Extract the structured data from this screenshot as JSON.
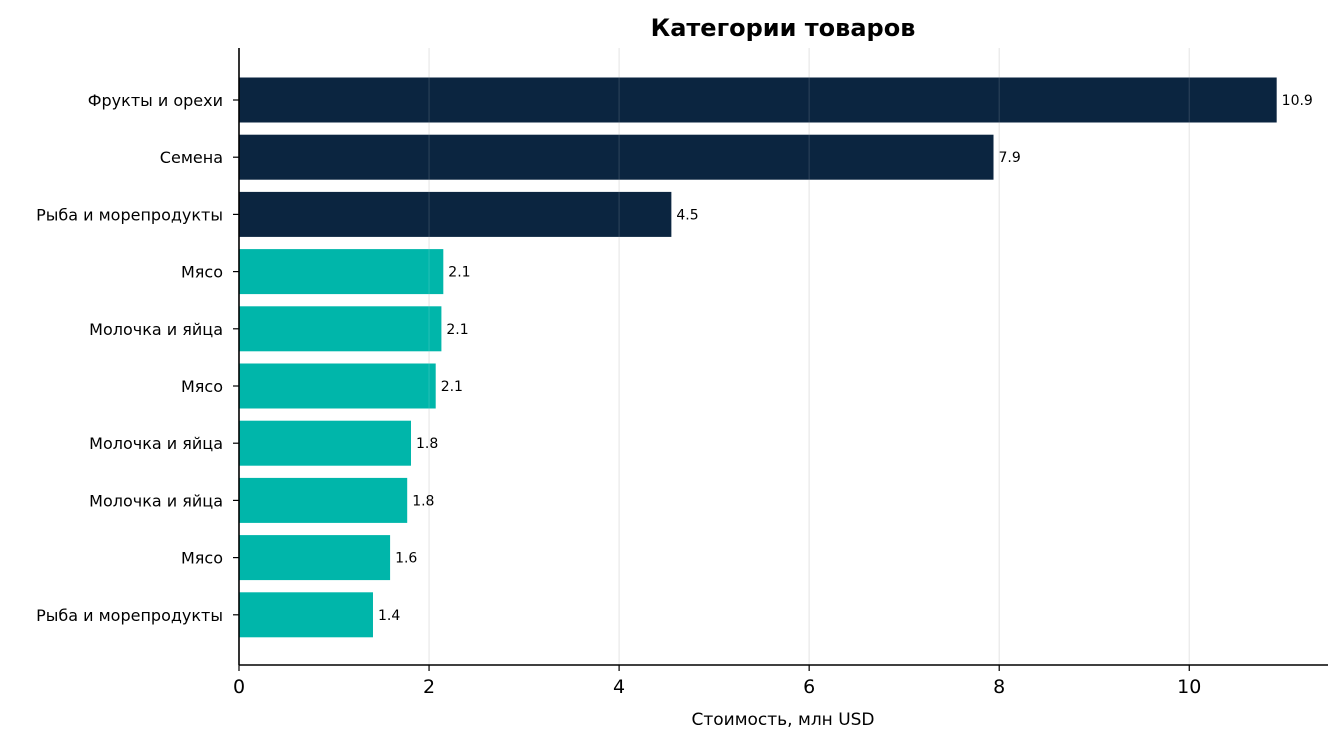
{
  "chart_data": {
    "type": "bar",
    "orientation": "horizontal",
    "title": "Категории товаров",
    "xlabel": "Стоимость, млн USD",
    "ylabel": "",
    "xlim": [
      0,
      11.46
    ],
    "xticks": [
      0,
      2,
      4,
      6,
      8,
      10
    ],
    "grid": "vertical",
    "legend": "none",
    "colors": {
      "top3": "#0b2540",
      "rest": "#00b6aa",
      "grid": "#e6e6e6",
      "axis": "#000000"
    },
    "categories": [
      "Фрукты и орехи",
      "Семена",
      "Рыба и морепродукты",
      "Мясо",
      "Молочка и яйца",
      "Мясо",
      "Молочка и яйца",
      "Молочка и яйца",
      "Мясо",
      "Рыба и морепродукты"
    ],
    "values": [
      10.92,
      7.94,
      4.55,
      2.15,
      2.13,
      2.07,
      1.81,
      1.77,
      1.59,
      1.41
    ],
    "labels": [
      "10.9",
      "7.9",
      "4.5",
      "2.1",
      "2.1",
      "2.1",
      "1.8",
      "1.8",
      "1.6",
      "1.4"
    ],
    "highlight": [
      "top3",
      "top3",
      "top3",
      "rest",
      "rest",
      "rest",
      "rest",
      "rest",
      "rest",
      "rest"
    ]
  }
}
